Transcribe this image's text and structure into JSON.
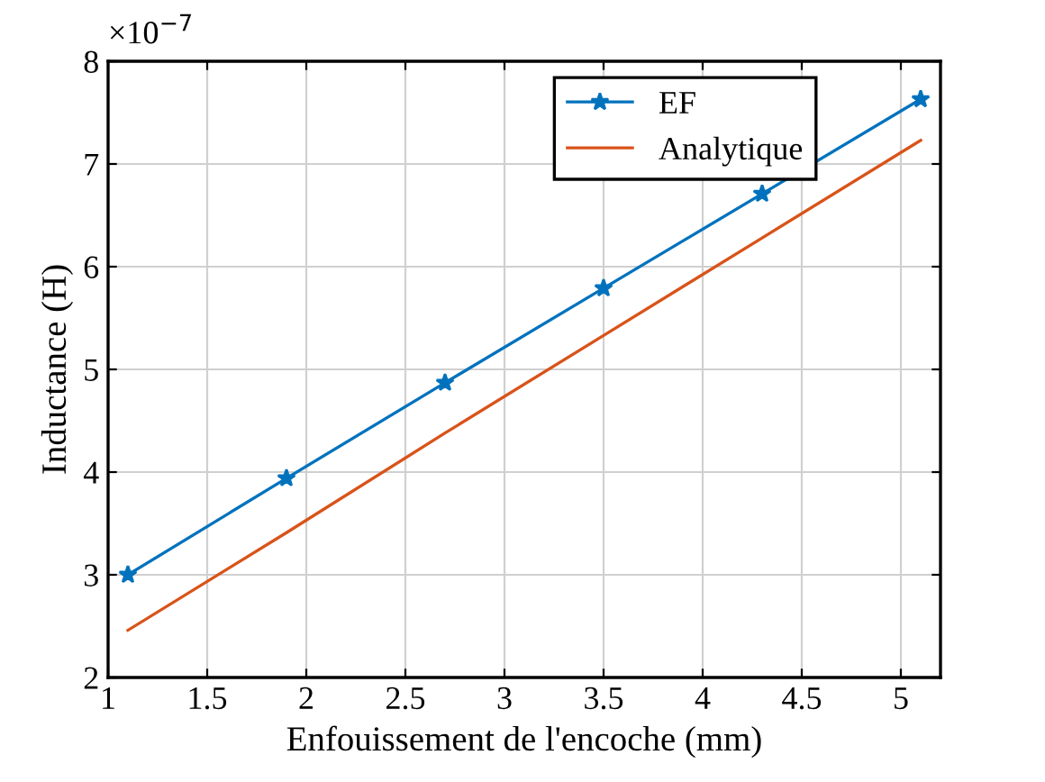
{
  "chart_data": {
    "type": "line",
    "xlabel": "Enfouissement de l'encoche (mm)",
    "ylabel": "Inductance (H)",
    "x": [
      1.1,
      1.9,
      2.7,
      3.5,
      4.3,
      5.1
    ],
    "series": [
      {
        "name": "EF",
        "color": "#0072bd",
        "marker": "star",
        "values": [
          3.0,
          3.94,
          4.87,
          5.79,
          6.71,
          7.63
        ]
      },
      {
        "name": "Analytique",
        "color": "#d95319",
        "values": [
          2.46,
          3.41,
          4.38,
          5.33,
          6.28,
          7.23
        ]
      }
    ],
    "annotations": [
      "×10$^{−7}$"
    ],
    "xlim": [
      1,
      5.2
    ],
    "xticks": [
      1,
      1.5,
      2,
      2.5,
      3,
      3.5,
      4,
      4.5,
      5
    ],
    "ylim": [
      2,
      8
    ],
    "yticks": [
      2,
      3,
      4,
      5,
      6,
      7,
      8
    ],
    "grid": true,
    "legend": "top right"
  }
}
